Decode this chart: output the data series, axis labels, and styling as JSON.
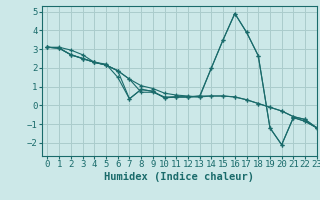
{
  "xlabel": "Humidex (Indice chaleur)",
  "ylabel": "",
  "xlim": [
    -0.5,
    23
  ],
  "ylim": [
    -2.7,
    5.3
  ],
  "background_color": "#cce8e8",
  "grid_color": "#aacccc",
  "line_color": "#1a6b6b",
  "lines": [
    [
      0,
      3.1,
      1,
      3.1,
      2,
      2.95,
      3,
      2.7,
      4,
      2.3,
      5,
      2.2,
      6,
      1.5,
      7,
      0.35,
      8,
      0.85,
      9,
      0.75,
      10,
      0.4,
      11,
      0.45,
      12,
      0.45,
      13,
      0.5,
      14,
      2.0,
      15,
      3.5,
      16,
      4.9,
      17,
      3.9,
      18,
      2.65,
      19,
      -1.2,
      20,
      -2.1,
      21,
      -0.65,
      22,
      -0.85,
      23,
      -1.2
    ],
    [
      0,
      3.1,
      1,
      3.05,
      2,
      2.7,
      3,
      2.5,
      4,
      2.3,
      5,
      2.15,
      6,
      1.85,
      7,
      1.4,
      8,
      1.05,
      9,
      0.9,
      10,
      0.65,
      11,
      0.55,
      12,
      0.5,
      13,
      0.45,
      14,
      0.5,
      15,
      0.5,
      16,
      0.45,
      17,
      0.3,
      18,
      0.1,
      19,
      -0.1,
      20,
      -0.3,
      21,
      -0.6,
      22,
      -0.75,
      23,
      -1.2
    ],
    [
      0,
      3.1,
      1,
      3.05,
      2,
      2.7,
      3,
      2.5,
      4,
      2.3,
      5,
      2.15,
      6,
      1.85,
      7,
      1.4,
      8,
      0.7,
      9,
      0.7,
      10,
      0.45,
      11,
      0.45,
      12,
      0.45,
      13,
      0.45,
      14,
      2.0,
      15,
      3.5,
      16,
      4.9,
      17,
      3.9,
      18,
      2.65,
      19,
      -1.2,
      20,
      -2.1,
      21,
      -0.65,
      22,
      -0.85,
      23,
      -1.2
    ],
    [
      0,
      3.1,
      1,
      3.05,
      2,
      2.7,
      3,
      2.5,
      4,
      2.3,
      5,
      2.15,
      6,
      1.85,
      7,
      0.35,
      8,
      0.85,
      9,
      0.75,
      10,
      0.4,
      11,
      0.45,
      12,
      0.45,
      13,
      0.5,
      14,
      0.5,
      15,
      0.5,
      16,
      0.45,
      17,
      0.3,
      18,
      0.1,
      19,
      -0.1,
      20,
      -0.3,
      21,
      -0.6,
      22,
      -0.75,
      23,
      -1.2
    ]
  ],
  "xticks": [
    0,
    1,
    2,
    3,
    4,
    5,
    6,
    7,
    8,
    9,
    10,
    11,
    12,
    13,
    14,
    15,
    16,
    17,
    18,
    19,
    20,
    21,
    22,
    23
  ],
  "yticks": [
    -2,
    -1,
    0,
    1,
    2,
    3,
    4,
    5
  ],
  "tick_fontsize": 6.5,
  "label_fontsize": 7.5
}
